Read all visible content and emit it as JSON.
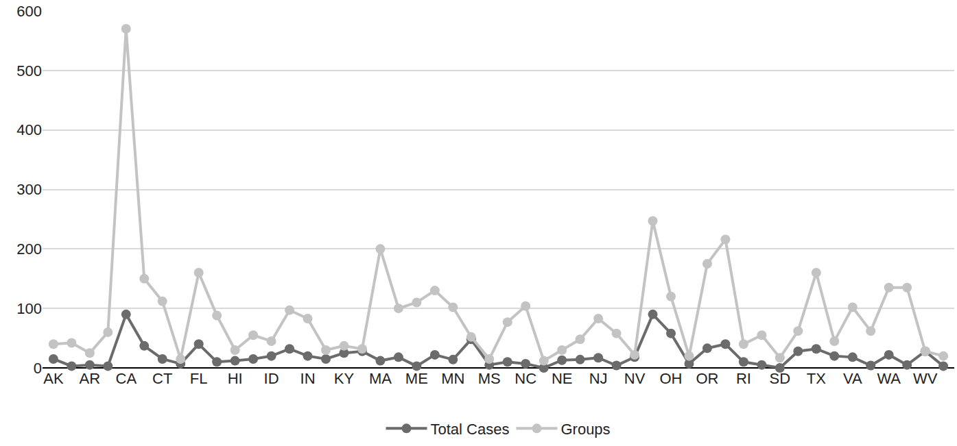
{
  "chart_data": {
    "type": "line",
    "categories": [
      "AK",
      null,
      "AR",
      null,
      "CA",
      null,
      "CT",
      null,
      "FL",
      null,
      "HI",
      null,
      "ID",
      null,
      "IN",
      null,
      "KY",
      null,
      "MA",
      null,
      "ME",
      null,
      "MN",
      null,
      "MS",
      null,
      "NC",
      null,
      "NE",
      null,
      "NJ",
      null,
      "NV",
      null,
      "OH",
      null,
      "OR",
      null,
      "RI",
      null,
      "SD",
      null,
      "TX",
      null,
      "VA",
      null,
      "WA",
      null,
      "WV",
      null
    ],
    "series": [
      {
        "name": "Total Cases",
        "color": "#6b6b6b",
        "marker": "circle",
        "values": [
          15,
          3,
          5,
          3,
          90,
          37,
          15,
          7,
          40,
          10,
          12,
          15,
          20,
          32,
          20,
          15,
          25,
          28,
          12,
          18,
          3,
          22,
          14,
          48,
          5,
          10,
          7,
          0,
          13,
          14,
          17,
          4,
          18,
          90,
          58,
          7,
          33,
          40,
          10,
          5,
          0,
          28,
          32,
          20,
          18,
          4,
          22,
          5,
          28,
          3
        ]
      },
      {
        "name": "Groups",
        "color": "#c3c3c3",
        "marker": "circle",
        "values": [
          40,
          42,
          25,
          60,
          570,
          150,
          112,
          15,
          160,
          88,
          30,
          55,
          45,
          97,
          83,
          30,
          37,
          32,
          200,
          100,
          110,
          130,
          102,
          52,
          15,
          77,
          104,
          12,
          30,
          48,
          83,
          58,
          22,
          247,
          120,
          20,
          175,
          216,
          40,
          55,
          17,
          62,
          160,
          45,
          102,
          62,
          135,
          135,
          28,
          20
        ]
      }
    ],
    "ylim": [
      0,
      600
    ],
    "yticks": [
      0,
      100,
      200,
      300,
      400,
      500,
      600
    ],
    "grid": true,
    "legend": "bottom"
  }
}
